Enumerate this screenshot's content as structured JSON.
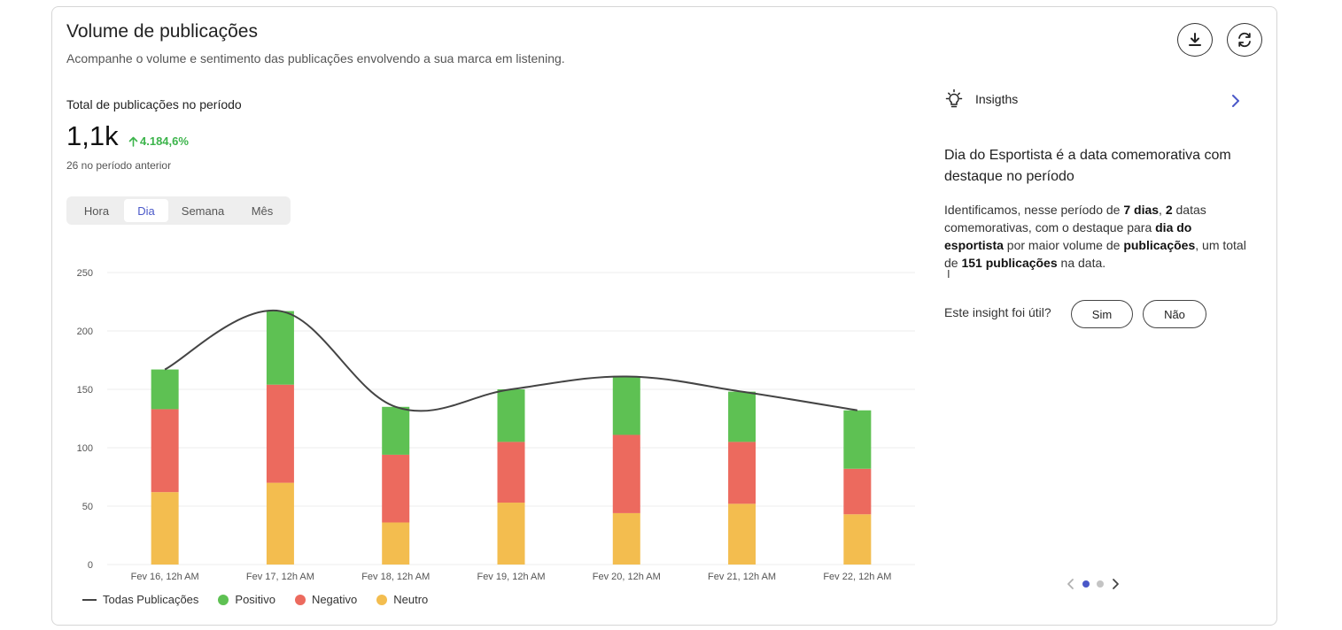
{
  "header": {
    "title": "Volume de publicações",
    "subtitle": "Acompanhe o volume e sentimento das publicações envolvendo a sua marca em listening."
  },
  "actions": {
    "download_icon": "download-icon",
    "refresh_icon": "refresh-icon"
  },
  "summary": {
    "label": "Total de publicações no período",
    "value": "1,1k",
    "change": "4.184,6%",
    "previous": "26 no período anterior"
  },
  "granularity": {
    "options": [
      "Hora",
      "Dia",
      "Semana",
      "Mês"
    ],
    "selected": "Dia"
  },
  "colors": {
    "positive": "#5ec153",
    "negative": "#ec6a5e",
    "neutral": "#f3bd4f",
    "line": "#444444",
    "accent": "#4a58c8"
  },
  "chart_data": {
    "type": "bar",
    "stacked": true,
    "categories": [
      "Fev 16, 12h AM",
      "Fev 17, 12h AM",
      "Fev 18, 12h AM",
      "Fev 19, 12h AM",
      "Fev 20, 12h AM",
      "Fev 21, 12h AM",
      "Fev 22, 12h AM"
    ],
    "series": [
      {
        "name": "Neutro",
        "values": [
          62,
          70,
          36,
          53,
          44,
          52,
          43
        ]
      },
      {
        "name": "Negativo",
        "values": [
          71,
          84,
          58,
          52,
          67,
          53,
          39
        ]
      },
      {
        "name": "Positivo",
        "values": [
          34,
          63,
          41,
          45,
          50,
          43,
          50
        ]
      }
    ],
    "line": {
      "name": "Todas Publicações",
      "values": [
        167,
        217,
        135,
        150,
        161,
        148,
        132
      ]
    },
    "ylim": [
      0,
      250
    ],
    "yticks": [
      0,
      50,
      100,
      150,
      200,
      250
    ],
    "grid": true,
    "legend_position": "bottom-left"
  },
  "legend": {
    "all": "Todas Publicações",
    "positive": "Positivo",
    "negative": "Negativo",
    "neutral": "Neutro"
  },
  "insights": {
    "header": "Insigths",
    "title": "Dia do Esportista é a data comemorativa com destaque no período",
    "body": {
      "p1": "Identificamos, nesse período de ",
      "b1": "7 dias",
      "p2": ", ",
      "b2": "2",
      "p3": " datas comemorativas, com o destaque para ",
      "b3": "dia do esportista",
      "p4": " por maior volume de ",
      "b4": "publicações",
      "p5": ", um total de ",
      "b5": "151 publicações",
      "p6": " na data."
    },
    "question": "Este insight foi útil?",
    "yes": "Sim",
    "no": "Não",
    "page_count": 2,
    "current_page": 1
  }
}
